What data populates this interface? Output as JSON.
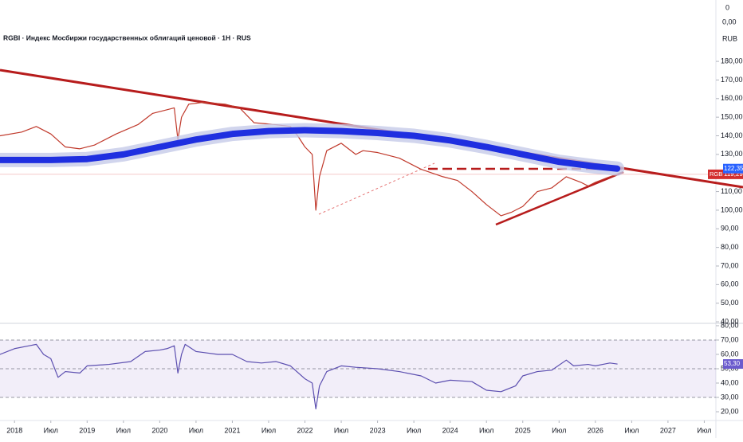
{
  "header": {
    "symbol_title": "RGBI · Индекс Мосбиржи государственных облигаций ценовой · 1H · RUS",
    "top_value": "0",
    "top_value2": "0,00",
    "currency": "RUB"
  },
  "chart_data": [
    {
      "type": "line",
      "xlim": [
        2017.8,
        2027.66
      ],
      "ylim": [
        39.6,
        213
      ],
      "yticks": [
        {
          "value": 180,
          "label": "180,00"
        },
        {
          "value": 170,
          "label": "170,00"
        },
        {
          "value": 160,
          "label": "160,00"
        },
        {
          "value": 150,
          "label": "150,00"
        },
        {
          "value": 140,
          "label": "140,00"
        },
        {
          "value": 130,
          "label": "130,00"
        },
        {
          "value": 110,
          "label": "110,00"
        },
        {
          "value": 100,
          "label": "100,00"
        },
        {
          "value": 90,
          "label": "90,00"
        },
        {
          "value": 80,
          "label": "80,00"
        },
        {
          "value": 70,
          "label": "70,00"
        },
        {
          "value": 60,
          "label": "60,00"
        },
        {
          "value": 50,
          "label": "50,00"
        },
        {
          "value": 40,
          "label": "40,00"
        }
      ],
      "series": [
        {
          "name": "RGBI",
          "color": "#c0392b",
          "badge_color": "#d32f2f",
          "last_value_label": "119,29",
          "x": [
            2017.8,
            2018.1,
            2018.3,
            2018.5,
            2018.7,
            2018.9,
            2019.1,
            2019.4,
            2019.7,
            2019.9,
            2020.1,
            2020.2,
            2020.25,
            2020.3,
            2020.4,
            2020.6,
            2020.9,
            2021.1,
            2021.3,
            2021.6,
            2021.8,
            2021.9,
            2022.0,
            2022.1,
            2022.15,
            2022.2,
            2022.3,
            2022.5,
            2022.7,
            2022.8,
            2023.0,
            2023.3,
            2023.6,
            2023.9,
            2024.1,
            2024.3,
            2024.5,
            2024.7,
            2024.85,
            2025.0,
            2025.2,
            2025.4,
            2025.6,
            2025.8,
            2025.9,
            2026.0,
            2026.2,
            2026.3
          ],
          "values": [
            140,
            142,
            145,
            141,
            134,
            133,
            135,
            141,
            146,
            152,
            154,
            155,
            138,
            150,
            157,
            158,
            157,
            155,
            147,
            146,
            145,
            140,
            134,
            130,
            100,
            118,
            132,
            136,
            130,
            132,
            131,
            128,
            122,
            118,
            116,
            110,
            103,
            97,
            99,
            102,
            110,
            112,
            118,
            115,
            113,
            115,
            118,
            119.29
          ]
        },
        {
          "color": "#1f2fe0",
          "badge_color": "#2962ff",
          "last_value_label": "122,35",
          "x": [
            2017.8,
            2018.5,
            2019.0,
            2019.5,
            2020.0,
            2020.5,
            2021.0,
            2021.5,
            2022.0,
            2022.5,
            2023.0,
            2023.5,
            2024.0,
            2024.5,
            2025.0,
            2025.5,
            2026.0,
            2026.3
          ],
          "values": [
            127,
            127,
            127.5,
            130,
            134,
            138,
            141,
            142.5,
            143,
            142.5,
            141.5,
            140,
            137.5,
            134,
            130,
            126,
            123.5,
            122.35
          ]
        }
      ]
    },
    {
      "type": "line",
      "xlim": [
        2017.8,
        2027.66
      ],
      "ylim": [
        13.9,
        82.2
      ],
      "yticks": [
        {
          "value": 80,
          "label": "80,00"
        },
        {
          "value": 70,
          "label": "70,00"
        },
        {
          "value": 60,
          "label": "60,00"
        },
        {
          "value": 50,
          "label": "50,00"
        },
        {
          "value": 40,
          "label": "40,00"
        },
        {
          "value": 30,
          "label": "30,00"
        },
        {
          "value": 20,
          "label": "20,00"
        }
      ],
      "bands": [
        70,
        50,
        30
      ],
      "xticks": [
        {
          "value": 2018,
          "label": "2018"
        },
        {
          "value": 2018.5,
          "label": "Июл"
        },
        {
          "value": 2019,
          "label": "2019"
        },
        {
          "value": 2019.5,
          "label": "Июл"
        },
        {
          "value": 2020,
          "label": "2020"
        },
        {
          "value": 2020.5,
          "label": "Июл"
        },
        {
          "value": 2021,
          "label": "2021"
        },
        {
          "value": 2021.5,
          "label": "Июл"
        },
        {
          "value": 2022,
          "label": "2022"
        },
        {
          "value": 2022.5,
          "label": "Июл"
        },
        {
          "value": 2023,
          "label": "2023"
        },
        {
          "value": 2023.5,
          "label": "Июл"
        },
        {
          "value": 2024,
          "label": "2024"
        },
        {
          "value": 2024.5,
          "label": "Июл"
        },
        {
          "value": 2025,
          "label": "2025"
        },
        {
          "value": 2025.5,
          "label": "Июл"
        },
        {
          "value": 2026,
          "label": "2026"
        },
        {
          "value": 2026.5,
          "label": "Июл"
        },
        {
          "value": 2027,
          "label": "2027"
        },
        {
          "value": 2027.5,
          "label": "Июл"
        }
      ],
      "series": [
        {
          "color": "#5c4fb0",
          "badge_color": "#6a5acd",
          "last_value_label": "53,30",
          "x": [
            2017.8,
            2018.0,
            2018.2,
            2018.3,
            2018.4,
            2018.5,
            2018.6,
            2018.7,
            2018.9,
            2019.0,
            2019.3,
            2019.6,
            2019.8,
            2020.0,
            2020.1,
            2020.2,
            2020.25,
            2020.3,
            2020.35,
            2020.5,
            2020.8,
            2021.0,
            2021.2,
            2021.4,
            2021.6,
            2021.8,
            2022.0,
            2022.1,
            2022.15,
            2022.2,
            2022.3,
            2022.5,
            2022.7,
            2023.0,
            2023.3,
            2023.6,
            2023.8,
            2024.0,
            2024.3,
            2024.5,
            2024.7,
            2024.9,
            2025.0,
            2025.2,
            2025.4,
            2025.6,
            2025.7,
            2025.9,
            2026.0,
            2026.2,
            2026.3
          ],
          "values": [
            60,
            64,
            66,
            67,
            60,
            57,
            44,
            48,
            47,
            52,
            53,
            55,
            62,
            63,
            64,
            66,
            47,
            60,
            67,
            62,
            60,
            60,
            55,
            54,
            55,
            52,
            43,
            40,
            22,
            38,
            48,
            52,
            51,
            50,
            48,
            45,
            40,
            42,
            41,
            35,
            34,
            38,
            45,
            48,
            49,
            56,
            52,
            53,
            52,
            54,
            53.3
          ]
        }
      ]
    }
  ]
}
